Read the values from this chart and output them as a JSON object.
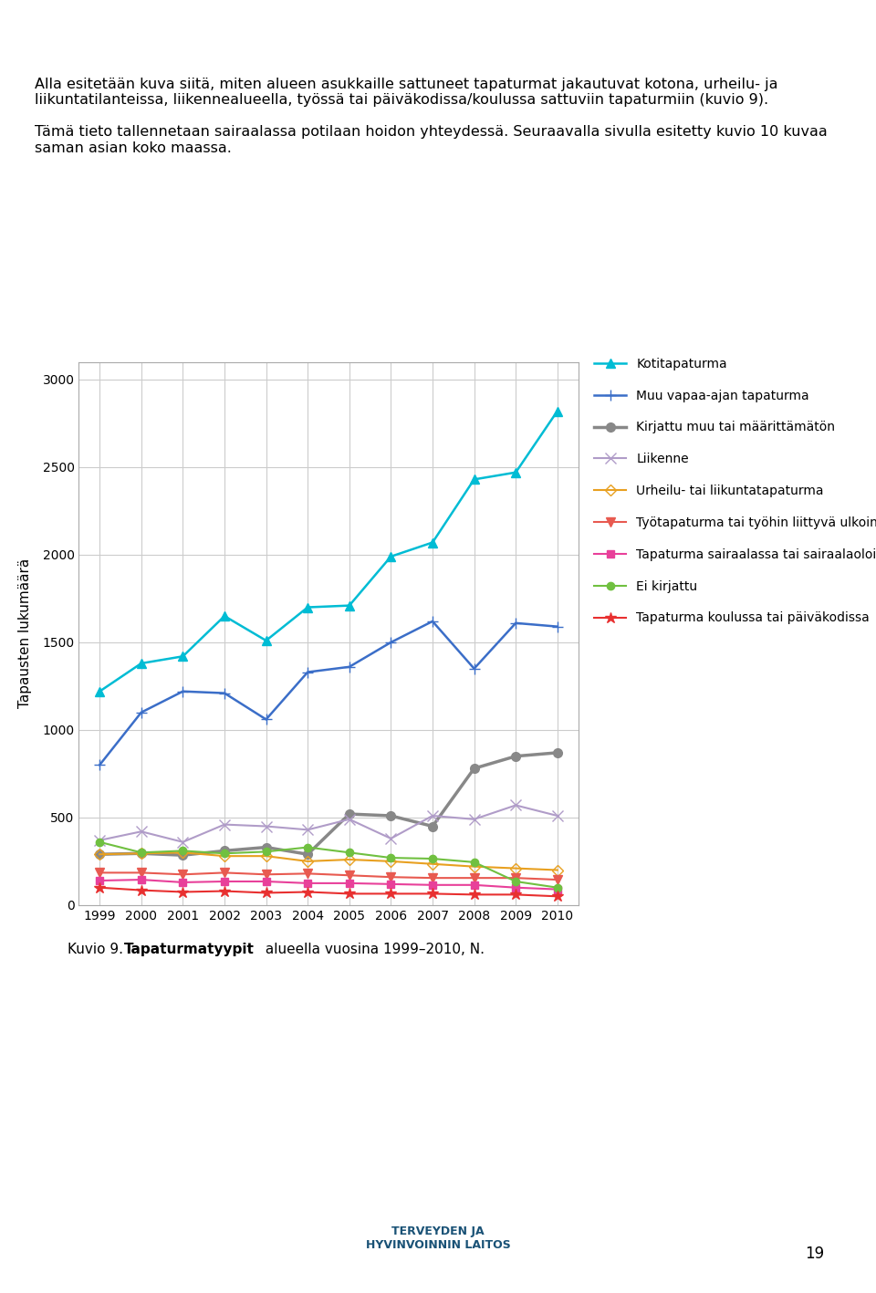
{
  "years": [
    1999,
    2000,
    2001,
    2002,
    2003,
    2004,
    2005,
    2006,
    2007,
    2008,
    2009,
    2010
  ],
  "series": {
    "Kotitapaturma": {
      "values": [
        1220,
        1380,
        1420,
        1650,
        1510,
        1700,
        1710,
        1990,
        2070,
        2430,
        2470,
        2820
      ],
      "color": "#00BCD4",
      "marker": "^",
      "linestyle": "-",
      "linewidth": 1.8,
      "markersize": 7
    },
    "Muu vapaa-ajan tapaturma": {
      "values": [
        800,
        1100,
        1220,
        1210,
        1060,
        1330,
        1360,
        1500,
        1620,
        1350,
        1610,
        1590
      ],
      "color": "#3B6EC8",
      "marker": "+",
      "linestyle": "-",
      "linewidth": 1.8,
      "markersize": 9
    },
    "Kirjattu muu tai määrittämätön": {
      "values": [
        290,
        295,
        285,
        310,
        330,
        290,
        520,
        510,
        450,
        780,
        850,
        870
      ],
      "color": "#888888",
      "marker": "o",
      "linestyle": "-",
      "linewidth": 2.5,
      "markersize": 7
    },
    "Liikenne": {
      "values": [
        370,
        420,
        360,
        460,
        450,
        430,
        490,
        380,
        510,
        490,
        570,
        510
      ],
      "color": "#B09CC8",
      "marker": "x",
      "linestyle": "-",
      "linewidth": 1.5,
      "markersize": 8
    },
    "Urheilu- tai liikuntatapaturma": {
      "values": [
        290,
        295,
        300,
        280,
        280,
        250,
        260,
        250,
        235,
        220,
        210,
        200
      ],
      "color": "#E8A020",
      "marker": "D",
      "linestyle": "-",
      "linewidth": 1.5,
      "markersize": 6,
      "markerfacecolor": "none"
    },
    "Työtapaturma tai työhin liittyvä ulkoinen tekijä": {
      "values": [
        185,
        185,
        175,
        185,
        175,
        180,
        170,
        160,
        155,
        155,
        155,
        145
      ],
      "color": "#E85A50",
      "marker": "v",
      "linestyle": "-",
      "linewidth": 1.5,
      "markersize": 7
    },
    "Tapaturma sairaalassa tai sairaalaoloihin liittyvä ulkoinen tekijä": {
      "values": [
        140,
        145,
        130,
        135,
        135,
        125,
        125,
        120,
        115,
        115,
        100,
        90
      ],
      "color": "#E8409A",
      "marker": "s",
      "linestyle": "-",
      "linewidth": 1.5,
      "markersize": 6
    },
    "Ei kirjattu": {
      "values": [
        360,
        300,
        310,
        295,
        305,
        330,
        300,
        270,
        265,
        245,
        135,
        100
      ],
      "color": "#70C040",
      "marker": "o",
      "linestyle": "-",
      "linewidth": 1.5,
      "markersize": 6
    },
    "Tapaturma koulussa tai päiväkodissa": {
      "values": [
        100,
        85,
        75,
        80,
        70,
        75,
        65,
        65,
        65,
        60,
        60,
        50
      ],
      "color": "#E83030",
      "marker": "*",
      "linestyle": "-",
      "linewidth": 1.5,
      "markersize": 9
    }
  },
  "ylabel": "Tapausten lukumäärä",
  "ylim": [
    0,
    3100
  ],
  "yticks": [
    0,
    500,
    1000,
    1500,
    2000,
    2500,
    3000
  ],
  "bg_color": "#FFFFFF",
  "grid_color": "#CCCCCC",
  "caption": "Kuvio 9. Tapaturmatyypit alueella vuosina 1999–2010, N.",
  "text_intro": "Alla esitetään kuva siitä, miten alueen asukkaille sattuneet tapaturmat jakautuvat kotona, urheilu- ja liikuntatilanteissa, liikennealueella, työssä tai päiväkodissa/koulussa sattuviin tapaturmiin (kuvio 9).",
  "text_intro2": "Tämä tieto tallennetaan sairaalassa potilaan hoidon yhteydessä. Seuraavalla sivulla esitetty kuvio 10 kuvaa saman asian koko maassa."
}
